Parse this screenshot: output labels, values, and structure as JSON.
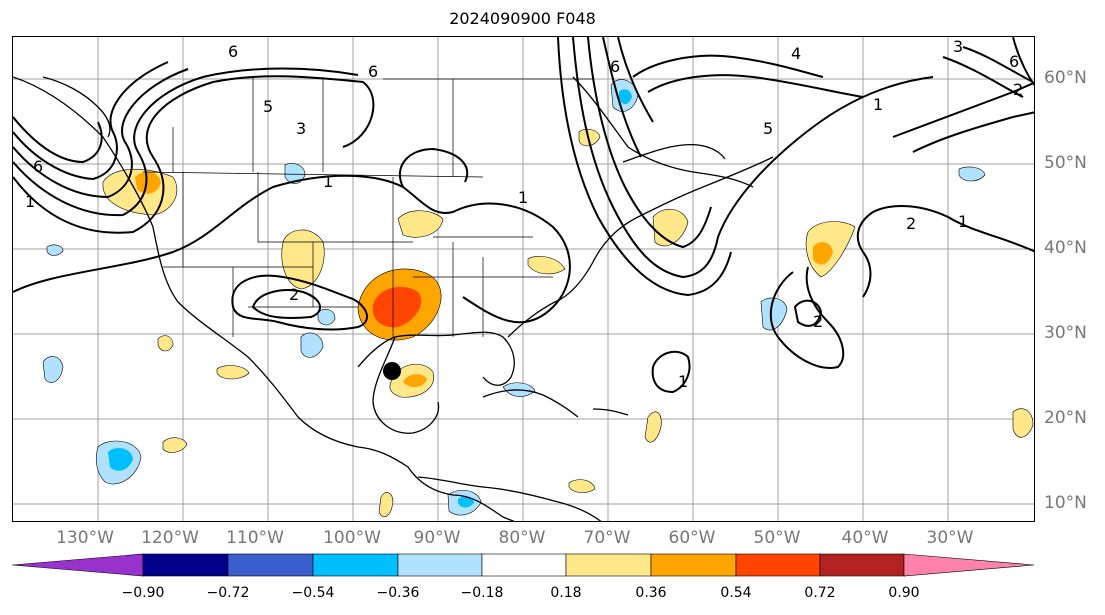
{
  "title": "2024090900 F048",
  "longitude_labels": [
    "130°W",
    "120°W",
    "110°W",
    "100°W",
    "90°W",
    "80°W",
    "70°W",
    "60°W",
    "50°W",
    "40°W",
    "30°W"
  ],
  "latitude_labels": [
    "60°N",
    "50°N",
    "40°N",
    "30°N",
    "20°N",
    "10°N"
  ],
  "contour_labels": [
    "6",
    "6",
    "5",
    "3",
    "1",
    "1",
    "1",
    "2",
    "6",
    "6",
    "4",
    "5",
    "1",
    "3",
    "2",
    "1",
    "2",
    "1",
    "6",
    "2"
  ],
  "colorbar": {
    "ticks": [
      "−0.90",
      "−0.72",
      "−0.54",
      "−0.36",
      "−0.18",
      "0.18",
      "0.36",
      "0.54",
      "0.72",
      "0.90"
    ],
    "colors": [
      "#9932cc",
      "#00008b",
      "#3a5fcd",
      "#00bfff",
      "#b0e2ff",
      "#ffffff",
      "#ffe88a",
      "#ffa500",
      "#ff4500",
      "#b22222",
      "#ff82ab"
    ]
  },
  "colors": {
    "land_outline": "#000000",
    "grid": "#a0a0a0",
    "axis_label": "#777777",
    "storm_marker": "#000000"
  }
}
